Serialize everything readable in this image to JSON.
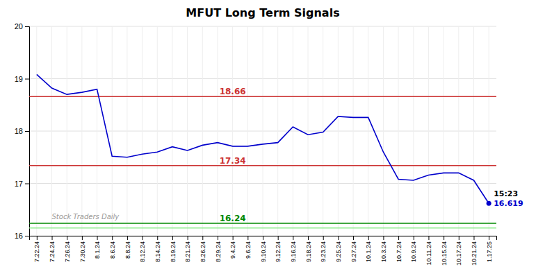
{
  "chart_data": {
    "type": "line",
    "title": "MFUT Long Term Signals",
    "categories": [
      "7.22.24",
      "7.24.24",
      "7.26.24",
      "7.30.24",
      "8.1.24",
      "8.6.24",
      "8.8.24",
      "8.12.24",
      "8.14.24",
      "8.19.24",
      "8.21.24",
      "8.26.24",
      "8.29.24",
      "9.4.24",
      "9.6.24",
      "9.10.24",
      "9.12.24",
      "9.16.24",
      "9.18.24",
      "9.23.24",
      "9.25.24",
      "9.27.24",
      "10.1.24",
      "10.3.24",
      "10.7.24",
      "10.9.24",
      "10.11.24",
      "10.15.24",
      "10.17.24",
      "10.21.24",
      "1.17.25"
    ],
    "values": [
      19.08,
      18.82,
      18.7,
      18.74,
      18.8,
      17.52,
      17.5,
      17.56,
      17.6,
      17.7,
      17.63,
      17.73,
      17.78,
      17.71,
      17.71,
      17.75,
      17.78,
      18.08,
      17.93,
      17.98,
      18.28,
      18.26,
      18.26,
      17.6,
      17.08,
      17.06,
      17.16,
      17.2,
      17.2,
      17.06,
      16.619
    ],
    "color": "#0000cc",
    "ylim": [
      16.0,
      20.0
    ],
    "yticks": [
      16,
      17,
      18,
      19,
      20
    ],
    "grid": true,
    "reference_lines": [
      {
        "value": 18.66,
        "label": "18.66",
        "color": "#cc3333"
      },
      {
        "value": 17.34,
        "label": "17.34",
        "color": "#cc3333"
      },
      {
        "value": 16.24,
        "label": "16.24",
        "color": "#008800"
      },
      {
        "value": 16.15,
        "color": "#90ee90"
      }
    ],
    "annotations": [
      {
        "text": "15:23",
        "point": 30
      },
      {
        "text": "16.619",
        "point": 30
      },
      {
        "text": "Stock Traders Daily"
      }
    ]
  }
}
